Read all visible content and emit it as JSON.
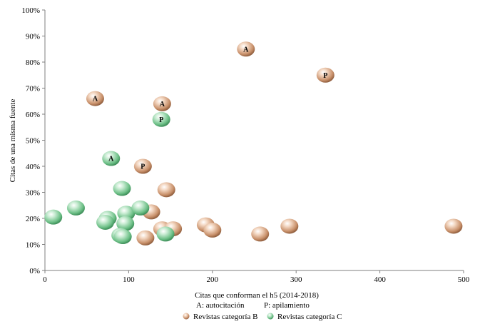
{
  "chart_data": {
    "type": "scatter",
    "xlabel": "Citas  que conforman  el  h5 (2014-2018)",
    "ylabel": "Citas de una misma  fuente",
    "xlim": [
      0,
      500
    ],
    "ylim": [
      0,
      100
    ],
    "x_ticks": [
      0,
      100,
      200,
      300,
      400,
      500
    ],
    "y_ticks": [
      0,
      10,
      20,
      30,
      40,
      50,
      60,
      70,
      80,
      90,
      100
    ],
    "y_unit": "%",
    "grid": false,
    "legend_position": "bottom",
    "notes": [
      "A: autocitación",
      "P: apilamiento"
    ],
    "series": [
      {
        "name": "Revistas categoría B",
        "color": "#c8906a",
        "points": [
          {
            "x": 60,
            "y": 66,
            "label": "A"
          },
          {
            "x": 140,
            "y": 64,
            "label": "A"
          },
          {
            "x": 240,
            "y": 85,
            "label": "A"
          },
          {
            "x": 335,
            "y": 75,
            "label": "P"
          },
          {
            "x": 117,
            "y": 40,
            "label": "P"
          },
          {
            "x": 145,
            "y": 31,
            "label": ""
          },
          {
            "x": 127,
            "y": 22.5,
            "label": ""
          },
          {
            "x": 140,
            "y": 16,
            "label": ""
          },
          {
            "x": 153,
            "y": 16,
            "label": ""
          },
          {
            "x": 120,
            "y": 12.5,
            "label": ""
          },
          {
            "x": 192,
            "y": 17.5,
            "label": ""
          },
          {
            "x": 200,
            "y": 15.5,
            "label": ""
          },
          {
            "x": 257,
            "y": 14,
            "label": ""
          },
          {
            "x": 292,
            "y": 17,
            "label": ""
          },
          {
            "x": 488,
            "y": 17,
            "label": ""
          }
        ]
      },
      {
        "name": "Revistas categoría C",
        "color": "#6cbf86",
        "points": [
          {
            "x": 139,
            "y": 58,
            "label": "P"
          },
          {
            "x": 79,
            "y": 43,
            "label": "A"
          },
          {
            "x": 92,
            "y": 31.5,
            "label": ""
          },
          {
            "x": 10,
            "y": 20.5,
            "label": ""
          },
          {
            "x": 37,
            "y": 24,
            "label": ""
          },
          {
            "x": 75,
            "y": 20,
            "label": ""
          },
          {
            "x": 72,
            "y": 18.5,
            "label": ""
          },
          {
            "x": 97,
            "y": 22,
            "label": ""
          },
          {
            "x": 114,
            "y": 24,
            "label": ""
          },
          {
            "x": 96,
            "y": 18,
            "label": ""
          },
          {
            "x": 90,
            "y": 13.5,
            "label": ""
          },
          {
            "x": 93,
            "y": 13,
            "label": ""
          },
          {
            "x": 144,
            "y": 14,
            "label": ""
          }
        ]
      }
    ]
  }
}
